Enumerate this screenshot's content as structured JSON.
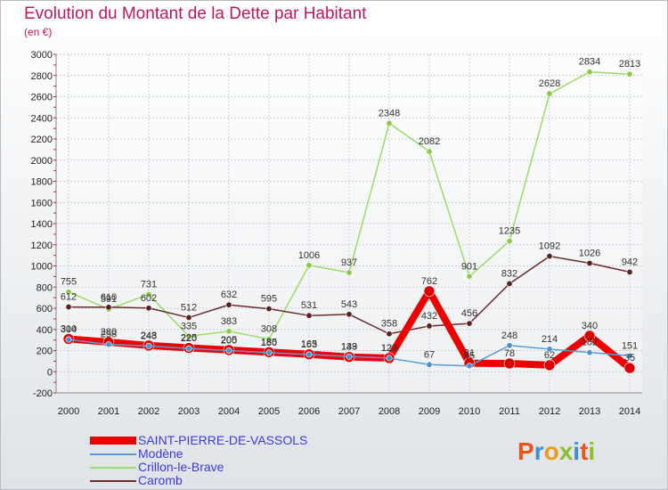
{
  "title": "Evolution du Montant de la Dette par Habitant",
  "subtitle": "(en €)",
  "logo": {
    "text": "Proxiti",
    "colors": [
      "#e8541c",
      "#3a8fd6",
      "#ea9b1b",
      "#8cbf2a",
      "#3a8fd6",
      "#e8541c",
      "#8cbf2a"
    ]
  },
  "chart_data": {
    "type": "line",
    "title": "Evolution du Montant de la Dette par Habitant",
    "subtitle": "(en €)",
    "xlabel": "",
    "ylabel": "",
    "x": [
      "2000",
      "2001",
      "2002",
      "2003",
      "2004",
      "2005",
      "2006",
      "2007",
      "2008",
      "2009",
      "2010",
      "2011",
      "2012",
      "2013",
      "2014"
    ],
    "ylim": [
      -200,
      3000
    ],
    "yticks": [
      "-200",
      "0",
      "200",
      "400",
      "600",
      "800",
      "1000",
      "1200",
      "1400",
      "1600",
      "1800",
      "2000",
      "2200",
      "2400",
      "2600",
      "2800",
      "3000"
    ],
    "grid": true,
    "legend_position": "bottom-left",
    "series": [
      {
        "name": "SAINT-PIERRE-DE-VASSOLS",
        "color": "#ee0000",
        "values": [
          310,
          280,
          248,
          225,
          205,
          185,
          165,
          139,
          129,
          762,
          81,
          78,
          62,
          340,
          35
        ],
        "labels": [
          "310",
          "280",
          "248",
          "225",
          "205",
          "185",
          "165",
          "139",
          "129",
          "762",
          "81",
          "78",
          "62",
          "340",
          "35"
        ]
      },
      {
        "name": "Modène",
        "color": "#5b9bd5",
        "values": [
          304,
          258,
          243,
          220,
          200,
          180,
          163,
          143,
          129,
          67,
          55,
          248,
          214,
          182,
          151
        ],
        "labels": [
          "304",
          "258",
          "243",
          "220",
          "200",
          "180",
          "163",
          "143",
          "129",
          "67",
          "55",
          "248",
          "214",
          "182",
          "151"
        ]
      },
      {
        "name": "Crillon-le-Brave",
        "color": "#99dd66",
        "values": [
          755,
          591,
          731,
          335,
          383,
          308,
          1006,
          937,
          2348,
          2082,
          901,
          1235,
          2628,
          2834,
          2813
        ],
        "labels": [
          "755",
          "591",
          "731",
          "335",
          "383",
          "308",
          "1006",
          "937",
          "2348",
          "2082",
          "901",
          "1235",
          "2628",
          "2834",
          "2813"
        ]
      },
      {
        "name": "Caromb",
        "color": "#6b2b2b",
        "values": [
          612,
          610,
          602,
          512,
          632,
          595,
          531,
          543,
          358,
          432,
          456,
          832,
          1092,
          1026,
          942
        ],
        "labels": [
          "612",
          "610",
          "602",
          "512",
          "632",
          "595",
          "531",
          "543",
          "358",
          "432",
          "456",
          "832",
          "1092",
          "1026",
          "942"
        ]
      }
    ]
  }
}
